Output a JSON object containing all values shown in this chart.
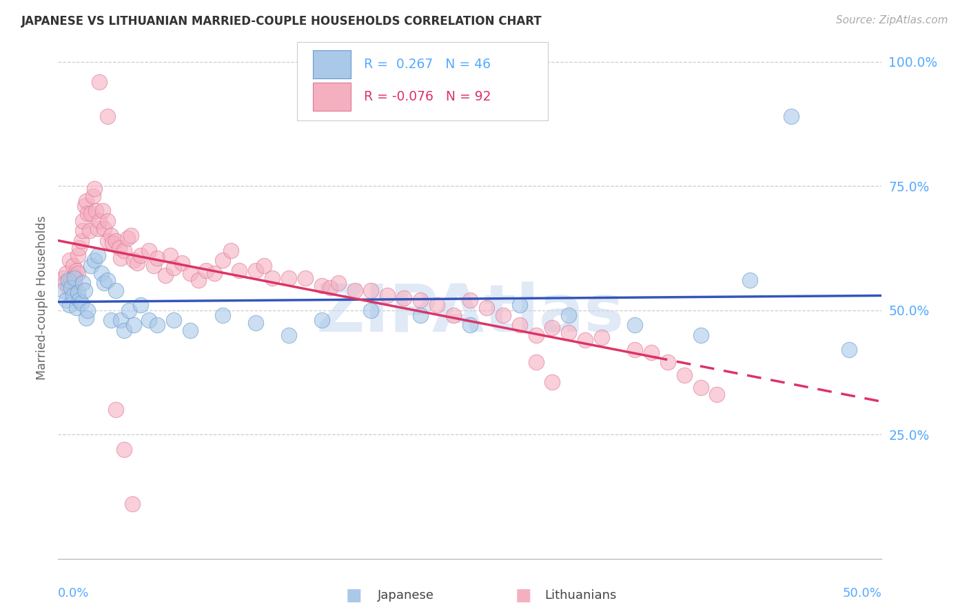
{
  "title": "JAPANESE VS LITHUANIAN MARRIED-COUPLE HOUSEHOLDS CORRELATION CHART",
  "source": "Source: ZipAtlas.com",
  "ylabel": "Married-couple Households",
  "xlim": [
    0.0,
    0.5
  ],
  "ylim": [
    0.0,
    1.05
  ],
  "yticks": [
    0.0,
    0.25,
    0.5,
    0.75,
    1.0
  ],
  "ytick_labels": [
    "",
    "25.0%",
    "50.0%",
    "75.0%",
    "100.0%"
  ],
  "xtick_left": "0.0%",
  "xtick_right": "50.0%",
  "japanese_color": "#aac8e8",
  "japanese_edge": "#6699cc",
  "lithuanian_color": "#f5b0c0",
  "lithuanian_edge": "#dd7799",
  "japanese_line_color": "#3355bb",
  "lithuanian_line_color": "#dd3366",
  "japanese_R": 0.267,
  "japanese_N": 46,
  "lithuanian_R": -0.076,
  "lithuanian_N": 92,
  "watermark": "ZIPAtlas",
  "watermark_color": "#c8d8f0",
  "grid_color": "#cccccc",
  "title_color": "#333333",
  "source_color": "#aaaaaa",
  "axis_tick_color": "#55aaff",
  "legend_label_jp": "Japanese",
  "legend_label_lt": "Lithuanians",
  "background_color": "#ffffff",
  "japanese_x": [
    0.003,
    0.005,
    0.006,
    0.007,
    0.008,
    0.009,
    0.01,
    0.011,
    0.012,
    0.013,
    0.014,
    0.015,
    0.016,
    0.017,
    0.018,
    0.02,
    0.022,
    0.024,
    0.026,
    0.028,
    0.03,
    0.032,
    0.035,
    0.038,
    0.04,
    0.043,
    0.046,
    0.05,
    0.055,
    0.06,
    0.07,
    0.08,
    0.1,
    0.12,
    0.14,
    0.16,
    0.19,
    0.22,
    0.25,
    0.28,
    0.31,
    0.35,
    0.39,
    0.42,
    0.445,
    0.48
  ],
  "japanese_y": [
    0.54,
    0.52,
    0.56,
    0.51,
    0.545,
    0.53,
    0.565,
    0.505,
    0.535,
    0.52,
    0.515,
    0.555,
    0.54,
    0.485,
    0.5,
    0.59,
    0.6,
    0.61,
    0.575,
    0.555,
    0.56,
    0.48,
    0.54,
    0.48,
    0.46,
    0.5,
    0.47,
    0.51,
    0.48,
    0.47,
    0.48,
    0.46,
    0.49,
    0.475,
    0.45,
    0.48,
    0.5,
    0.49,
    0.47,
    0.51,
    0.49,
    0.47,
    0.45,
    0.56,
    0.89,
    0.42
  ],
  "lithuanian_x": [
    0.003,
    0.004,
    0.005,
    0.006,
    0.007,
    0.008,
    0.009,
    0.01,
    0.01,
    0.011,
    0.012,
    0.012,
    0.013,
    0.014,
    0.015,
    0.015,
    0.016,
    0.017,
    0.018,
    0.019,
    0.02,
    0.021,
    0.022,
    0.023,
    0.024,
    0.025,
    0.027,
    0.028,
    0.03,
    0.03,
    0.032,
    0.033,
    0.035,
    0.037,
    0.038,
    0.04,
    0.042,
    0.044,
    0.046,
    0.048,
    0.05,
    0.055,
    0.058,
    0.06,
    0.065,
    0.068,
    0.07,
    0.075,
    0.08,
    0.085,
    0.09,
    0.095,
    0.1,
    0.105,
    0.11,
    0.12,
    0.125,
    0.13,
    0.14,
    0.15,
    0.16,
    0.165,
    0.17,
    0.18,
    0.19,
    0.2,
    0.21,
    0.22,
    0.23,
    0.24,
    0.25,
    0.26,
    0.27,
    0.28,
    0.29,
    0.3,
    0.31,
    0.32,
    0.33,
    0.35,
    0.36,
    0.37,
    0.38,
    0.39,
    0.4,
    0.29,
    0.3,
    0.025,
    0.03,
    0.035,
    0.04,
    0.045
  ],
  "lithuanian_y": [
    0.565,
    0.555,
    0.575,
    0.545,
    0.6,
    0.56,
    0.59,
    0.57,
    0.555,
    0.58,
    0.61,
    0.575,
    0.625,
    0.64,
    0.66,
    0.68,
    0.71,
    0.72,
    0.695,
    0.66,
    0.695,
    0.73,
    0.745,
    0.7,
    0.665,
    0.68,
    0.7,
    0.665,
    0.68,
    0.64,
    0.65,
    0.635,
    0.64,
    0.625,
    0.605,
    0.62,
    0.645,
    0.65,
    0.6,
    0.595,
    0.61,
    0.62,
    0.59,
    0.605,
    0.57,
    0.61,
    0.585,
    0.595,
    0.575,
    0.56,
    0.58,
    0.575,
    0.6,
    0.62,
    0.58,
    0.58,
    0.59,
    0.565,
    0.565,
    0.565,
    0.55,
    0.545,
    0.555,
    0.54,
    0.54,
    0.53,
    0.525,
    0.52,
    0.51,
    0.49,
    0.52,
    0.505,
    0.49,
    0.47,
    0.45,
    0.465,
    0.455,
    0.44,
    0.445,
    0.42,
    0.415,
    0.395,
    0.37,
    0.345,
    0.33,
    0.395,
    0.355,
    0.96,
    0.89,
    0.3,
    0.22,
    0.11
  ]
}
